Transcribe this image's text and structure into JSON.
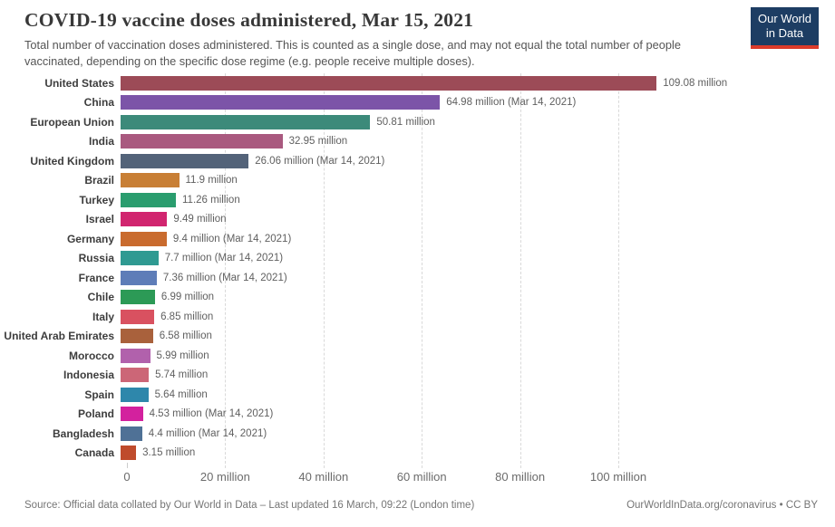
{
  "header": {
    "title": "COVID-19 vaccine doses administered, Mar 15, 2021",
    "subtitle": "Total number of vaccination doses administered. This is counted as a single dose, and may not equal the total number of people vaccinated, depending on the specific dose regime (e.g. people receive multiple doses).",
    "logo": {
      "line1": "Our World",
      "line2": "in Data",
      "bg_color": "#1d3d63",
      "stripe_color": "#dc3b2a"
    }
  },
  "chart_data": {
    "type": "bar",
    "orientation": "horizontal",
    "title": "COVID-19 vaccine doses administered, Mar 15, 2021",
    "unit": "million doses",
    "grid": "dashed-vertical",
    "legend": "none",
    "xlim": [
      0,
      134
    ],
    "x_axis": {
      "ticks": [
        {
          "value": 0,
          "label": "0"
        },
        {
          "value": 20,
          "label": "20 million"
        },
        {
          "value": 40,
          "label": "40 million"
        },
        {
          "value": 60,
          "label": "60 million"
        },
        {
          "value": 80,
          "label": "80 million"
        },
        {
          "value": 100,
          "label": "100 million"
        }
      ]
    },
    "bars": [
      {
        "label": "United States",
        "value": 109.08,
        "value_label": "109.08 million",
        "color": "#9C4B57"
      },
      {
        "label": "China",
        "value": 64.98,
        "value_label": "64.98 million (Mar 14, 2021)",
        "color": "#7C54A8"
      },
      {
        "label": "European Union",
        "value": 50.81,
        "value_label": "50.81 million",
        "color": "#3C8A7A"
      },
      {
        "label": "India",
        "value": 32.95,
        "value_label": "32.95 million",
        "color": "#A9597F"
      },
      {
        "label": "United Kingdom",
        "value": 26.06,
        "value_label": "26.06 million (Mar 14, 2021)",
        "color": "#536379"
      },
      {
        "label": "Brazil",
        "value": 11.9,
        "value_label": "11.9 million",
        "color": "#C87F35"
      },
      {
        "label": "Turkey",
        "value": 11.26,
        "value_label": "11.26 million",
        "color": "#2A9D6E"
      },
      {
        "label": "Israel",
        "value": 9.49,
        "value_label": "9.49 million",
        "color": "#D1256F"
      },
      {
        "label": "Germany",
        "value": 9.4,
        "value_label": "9.4 million (Mar 14, 2021)",
        "color": "#C96B2E"
      },
      {
        "label": "Russia",
        "value": 7.7,
        "value_label": "7.7 million (Mar 14, 2021)",
        "color": "#2F9A92"
      },
      {
        "label": "France",
        "value": 7.36,
        "value_label": "7.36 million (Mar 14, 2021)",
        "color": "#5E7DB8"
      },
      {
        "label": "Chile",
        "value": 6.99,
        "value_label": "6.99 million",
        "color": "#2C9A56"
      },
      {
        "label": "Italy",
        "value": 6.85,
        "value_label": "6.85 million",
        "color": "#D95160"
      },
      {
        "label": "United Arab Emirates",
        "value": 6.58,
        "value_label": "6.58 million",
        "color": "#A9613C"
      },
      {
        "label": "Morocco",
        "value": 5.99,
        "value_label": "5.99 million",
        "color": "#B161AC"
      },
      {
        "label": "Indonesia",
        "value": 5.74,
        "value_label": "5.74 million",
        "color": "#CC6677"
      },
      {
        "label": "Spain",
        "value": 5.64,
        "value_label": "5.64 million",
        "color": "#2E87AB"
      },
      {
        "label": "Poland",
        "value": 4.53,
        "value_label": "4.53 million (Mar 14, 2021)",
        "color": "#D3219E"
      },
      {
        "label": "Bangladesh",
        "value": 4.4,
        "value_label": "4.4 million (Mar 14, 2021)",
        "color": "#4F7196"
      },
      {
        "label": "Canada",
        "value": 3.15,
        "value_label": "3.15 million",
        "color": "#BF4B2C"
      }
    ]
  },
  "footer": {
    "source": "Source: Official data collated by Our World in Data – Last updated 16 March, 09:22 (London time)",
    "link": "OurWorldInData.org/coronavirus • CC BY"
  }
}
